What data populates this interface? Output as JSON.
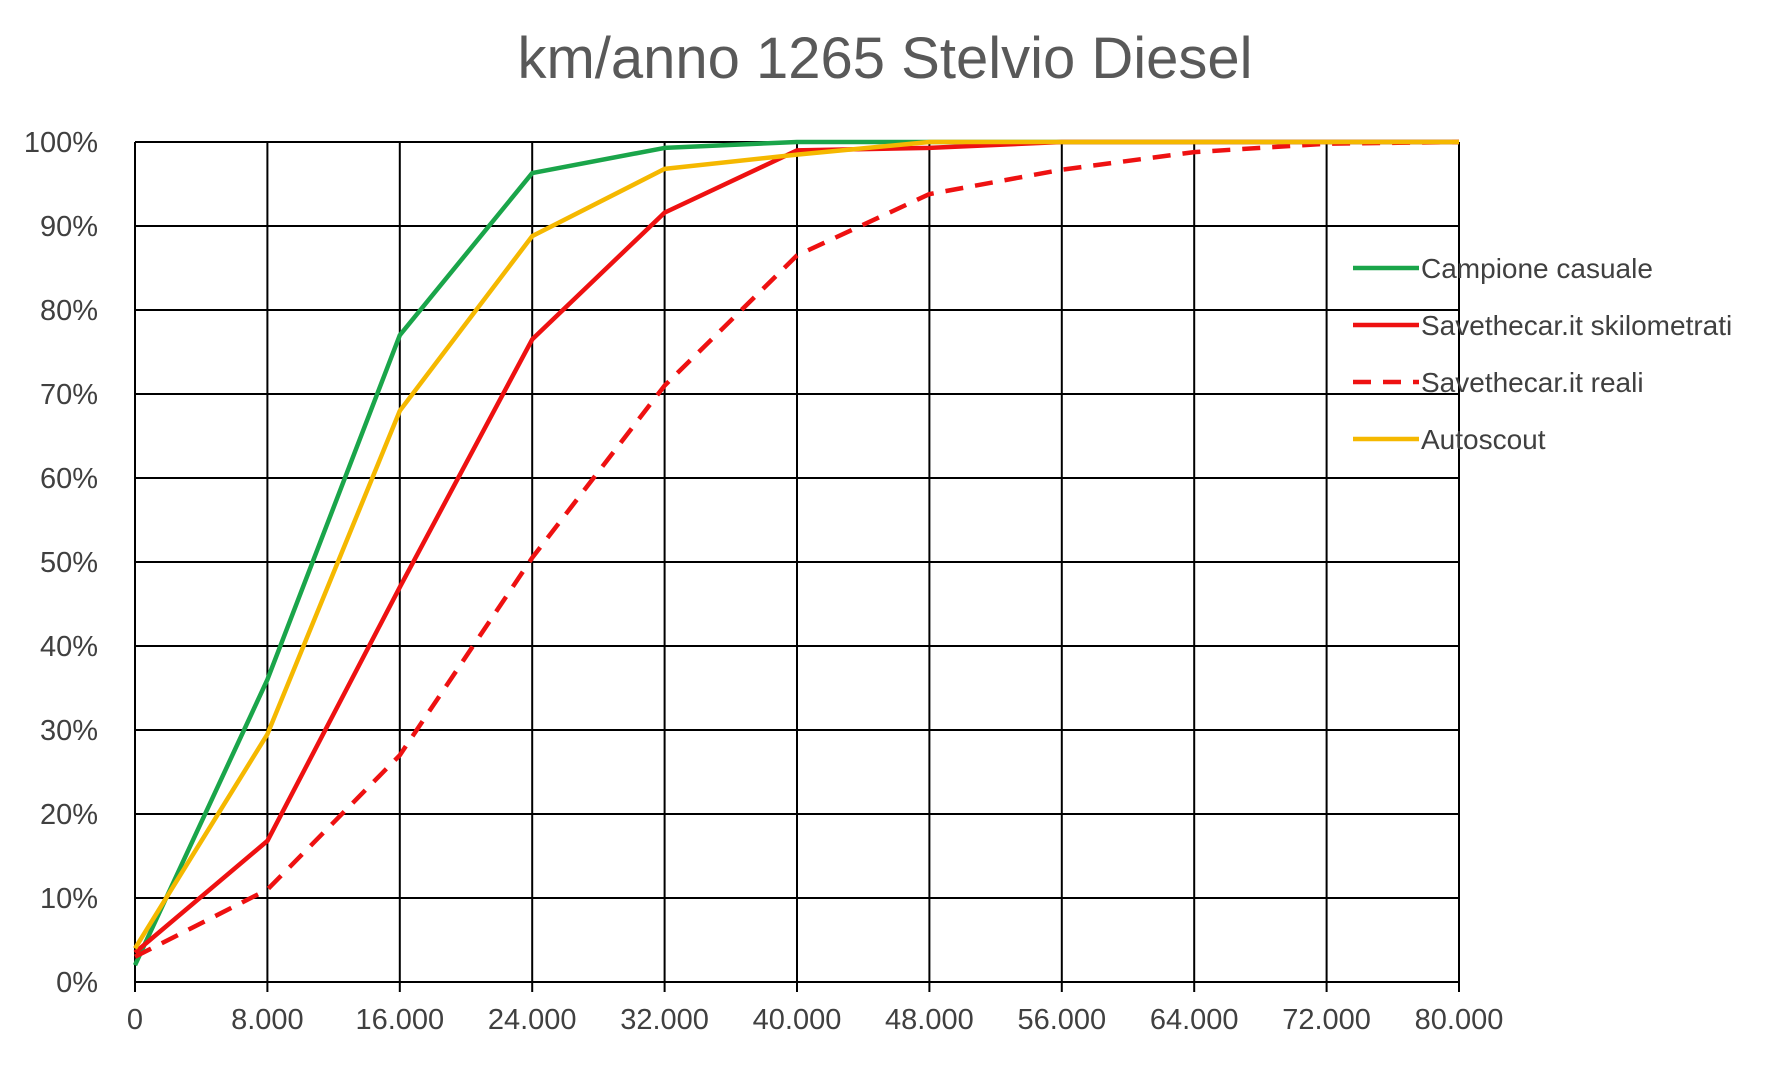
{
  "chart_data": {
    "type": "line",
    "title": "km/anno 1265 Stelvio Diesel",
    "xlabel": "",
    "ylabel": "",
    "x": [
      0,
      8000,
      16000,
      24000,
      32000,
      40000,
      48000,
      56000,
      64000,
      72000,
      80000
    ],
    "x_tick_labels": [
      "0",
      "8.000",
      "16.000",
      "24.000",
      "32.000",
      "40.000",
      "48.000",
      "56.000",
      "64.000",
      "72.000",
      "80.000"
    ],
    "y_tick_labels": [
      "0%",
      "10%",
      "20%",
      "30%",
      "40%",
      "50%",
      "60%",
      "70%",
      "80%",
      "90%",
      "100%"
    ],
    "xlim": [
      0,
      80000
    ],
    "ylim": [
      0,
      1
    ],
    "grid": true,
    "legend_position": "right",
    "series": [
      {
        "name": "Campione casuale",
        "color": "#1aa54a",
        "dashed": false,
        "values": [
          0.02,
          0.36,
          0.77,
          0.963,
          0.993,
          1.0,
          1.0,
          1.0,
          1.0,
          1.0,
          1.0
        ]
      },
      {
        "name": "Savethecar.it skilometrati",
        "color": "#ee1111",
        "dashed": false,
        "values": [
          0.035,
          0.168,
          0.47,
          0.765,
          0.916,
          0.99,
          0.993,
          1.0,
          1.0,
          1.0,
          1.0
        ]
      },
      {
        "name": "Savethecar.it reali",
        "color": "#ee1111",
        "dashed": true,
        "values": [
          0.03,
          0.11,
          0.27,
          0.505,
          0.71,
          0.865,
          0.938,
          0.967,
          0.988,
          0.998,
          1.0
        ]
      },
      {
        "name": "Autoscout",
        "color": "#f5b800",
        "dashed": false,
        "values": [
          0.04,
          0.295,
          0.68,
          0.888,
          0.968,
          0.985,
          1.0,
          1.0,
          1.0,
          1.0,
          1.0
        ]
      }
    ]
  }
}
